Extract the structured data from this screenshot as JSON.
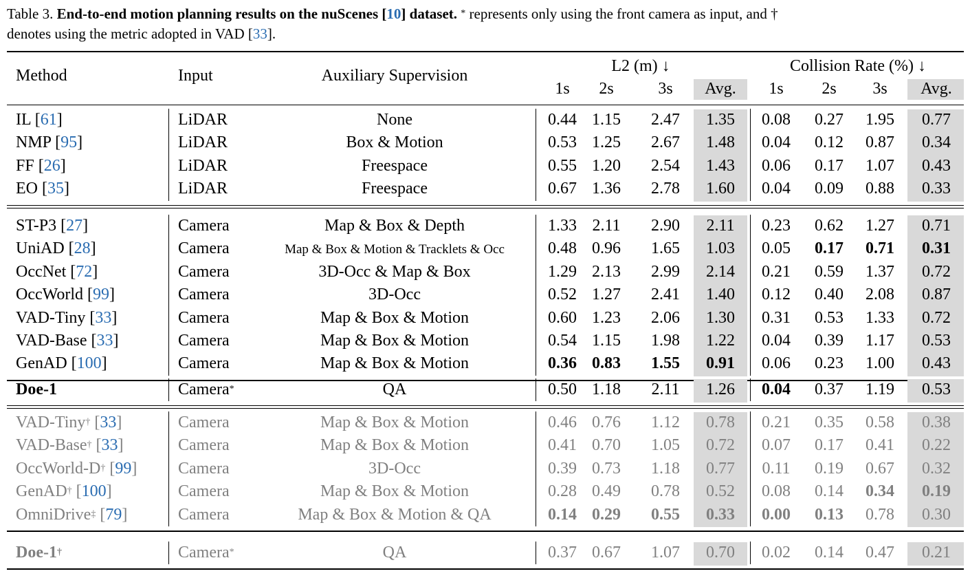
{
  "caption": {
    "label": "Table 3.",
    "title": "End-to-end motion planning results on the nuScenes [10] dataset.",
    "title_prefix": "End-to-end motion planning results on the nuScenes [",
    "title_cite": "10",
    "title_suffix": "] dataset.",
    "star_mark": "*",
    "note1": " represents only using the front camera as input, and ",
    "dagger_mark": "†",
    "line2_prefix": "denotes using the metric adopted in VAD [",
    "line2_cite": "33",
    "line2_suffix": "]."
  },
  "header": {
    "method": "Method",
    "input": "Input",
    "aux": "Auxiliary Supervision",
    "l2": "L2 (m) ↓",
    "collision": "Collision Rate (%) ↓",
    "sub": [
      "1s",
      "2s",
      "3s",
      "Avg.",
      "1s",
      "2s",
      "3s",
      "Avg."
    ]
  },
  "groups": [
    {
      "rows": [
        {
          "method": "IL",
          "cite": "61",
          "input": "LiDAR",
          "aux": "None",
          "vals": [
            "0.44",
            "1.15",
            "2.47",
            "1.35",
            "0.08",
            "0.27",
            "1.95",
            "0.77"
          ]
        },
        {
          "method": "NMP",
          "cite": "95",
          "input": "LiDAR",
          "aux": "Box & Motion",
          "vals": [
            "0.53",
            "1.25",
            "2.67",
            "1.48",
            "0.04",
            "0.12",
            "0.87",
            "0.34"
          ]
        },
        {
          "method": "FF",
          "cite": "26",
          "input": "LiDAR",
          "aux": "Freespace",
          "vals": [
            "0.55",
            "1.20",
            "2.54",
            "1.43",
            "0.06",
            "0.17",
            "1.07",
            "0.43"
          ]
        },
        {
          "method": "EO",
          "cite": "35",
          "input": "LiDAR",
          "aux": "Freespace",
          "vals": [
            "0.67",
            "1.36",
            "2.78",
            "1.60",
            "0.04",
            "0.09",
            "0.88",
            "0.33"
          ]
        }
      ]
    },
    {
      "rows": [
        {
          "method": "ST-P3",
          "cite": "27",
          "input": "Camera",
          "aux": "Map & Box & Depth",
          "vals": [
            "1.33",
            "2.11",
            "2.90",
            "2.11",
            "0.23",
            "0.62",
            "1.27",
            "0.71"
          ]
        },
        {
          "method": "UniAD",
          "cite": "28",
          "input": "Camera",
          "aux": "Map & Box & Motion & Tracklets & Occ",
          "vals": [
            "0.48",
            "0.96",
            "1.65",
            "1.03",
            "0.05",
            "0.17",
            "0.71",
            "0.31"
          ]
        },
        {
          "method": "OccNet",
          "cite": "72",
          "input": "Camera",
          "aux": "3D-Occ & Map & Box",
          "vals": [
            "1.29",
            "2.13",
            "2.99",
            "2.14",
            "0.21",
            "0.59",
            "1.37",
            "0.72"
          ]
        },
        {
          "method": "OccWorld",
          "cite": "99",
          "input": "Camera",
          "aux": "3D-Occ",
          "vals": [
            "0.52",
            "1.27",
            "2.41",
            "1.40",
            "0.12",
            "0.40",
            "2.08",
            "0.87"
          ]
        },
        {
          "method": "VAD-Tiny",
          "cite": "33",
          "input": "Camera",
          "aux": "Map & Box & Motion",
          "vals": [
            "0.60",
            "1.23",
            "2.06",
            "1.30",
            "0.31",
            "0.53",
            "1.33",
            "0.72"
          ]
        },
        {
          "method": "VAD-Base",
          "cite": "33",
          "input": "Camera",
          "aux": "Map & Box & Motion",
          "vals": [
            "0.54",
            "1.15",
            "1.98",
            "1.22",
            "0.04",
            "0.39",
            "1.17",
            "0.53"
          ]
        },
        {
          "method": "GenAD",
          "cite": "100",
          "input": "Camera",
          "aux": "Map & Box & Motion",
          "vals": [
            "0.36",
            "0.83",
            "1.55",
            "0.91",
            "0.06",
            "0.23",
            "1.00",
            "0.43"
          ]
        }
      ]
    },
    {
      "rows": [
        {
          "method": "Doe-1",
          "cite": "",
          "input": "Camera*",
          "aux": "QA",
          "vals": [
            "0.50",
            "1.18",
            "2.11",
            "1.26",
            "0.04",
            "0.37",
            "1.19",
            "0.53"
          ]
        }
      ]
    },
    {
      "rows": [
        {
          "method": "VAD-Tiny",
          "sup": "†",
          "cite": "33",
          "input": "Camera",
          "aux": "Map & Box & Motion",
          "vals": [
            "0.46",
            "0.76",
            "1.12",
            "0.78",
            "0.21",
            "0.35",
            "0.58",
            "0.38"
          ]
        },
        {
          "method": "VAD-Base",
          "sup": "†",
          "cite": "33",
          "input": "Camera",
          "aux": "Map & Box & Motion",
          "vals": [
            "0.41",
            "0.70",
            "1.05",
            "0.72",
            "0.07",
            "0.17",
            "0.41",
            "0.22"
          ]
        },
        {
          "method": "OccWorld-D",
          "sup": "†",
          "cite": "99",
          "input": "Camera",
          "aux": "3D-Occ",
          "vals": [
            "0.39",
            "0.73",
            "1.18",
            "0.77",
            "0.11",
            "0.19",
            "0.67",
            "0.32"
          ]
        },
        {
          "method": "GenAD",
          "sup": "†",
          "cite": "100",
          "input": "Camera",
          "aux": "Map & Box & Motion",
          "vals": [
            "0.28",
            "0.49",
            "0.78",
            "0.52",
            "0.08",
            "0.14",
            "0.34",
            "0.19"
          ]
        },
        {
          "method": "OmniDrive",
          "sup": "‡",
          "cite": "79",
          "input": "Camera",
          "aux": "Map & Box & Motion & QA",
          "vals": [
            "0.14",
            "0.29",
            "0.55",
            "0.33",
            "0.00",
            "0.13",
            "0.78",
            "0.30"
          ]
        }
      ]
    },
    {
      "rows": [
        {
          "method": "Doe-1",
          "sup": "†",
          "cite": "",
          "input": "Camera*",
          "aux": "QA",
          "vals": [
            "0.37",
            "0.67",
            "1.07",
            "0.70",
            "0.02",
            "0.14",
            "0.47",
            "0.21"
          ]
        }
      ]
    }
  ],
  "colors": {
    "cite": "#2a6cb1",
    "muted": "#808080",
    "avg_bg": "#d9d9d9"
  }
}
